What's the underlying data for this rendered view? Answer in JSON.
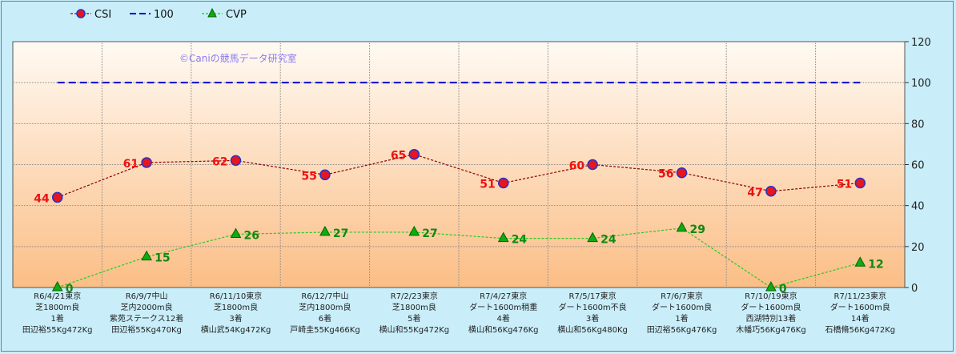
{
  "legend": [
    {
      "name": "CSI",
      "color": "#8b0000",
      "marker": "circle"
    },
    {
      "name": "100",
      "color": "#0000cc",
      "marker": "none"
    },
    {
      "name": "CVP",
      "color": "#22cc22",
      "marker": "triangle"
    }
  ],
  "watermark": "©Caniの競馬データ研究室",
  "chart_data": {
    "type": "line",
    "ylim": [
      0,
      120
    ],
    "yticks": [
      0,
      20,
      40,
      60,
      80,
      100,
      120
    ],
    "grid": true,
    "legend_position": "top-left",
    "categories": [
      [
        "R6/4/21東京",
        "芝1800m良",
        "1着",
        "田辺裕55Kg472Kg"
      ],
      [
        "R6/9/7中山",
        "芝内2000m良",
        "紫苑ステークス12着",
        "田辺裕55Kg470Kg"
      ],
      [
        "R6/11/10東京",
        "芝1800m良",
        "3着",
        "横山武54Kg472Kg"
      ],
      [
        "R6/12/7中山",
        "芝内1800m良",
        "6着",
        "戸崎圭55Kg466Kg"
      ],
      [
        "R7/2/23東京",
        "芝1800m良",
        "5着",
        "横山和55Kg472Kg"
      ],
      [
        "R7/4/27東京",
        "ダート1600m稍重",
        "4着",
        "横山和56Kg476Kg"
      ],
      [
        "R7/5/17東京",
        "ダート1600m不良",
        "3着",
        "横山和56Kg480Kg"
      ],
      [
        "R7/6/7東京",
        "ダート1600m良",
        "1着",
        "田辺裕56Kg476Kg"
      ],
      [
        "R7/10/19東京",
        "ダート1600m良",
        "西湖特別13着",
        "木幡巧56Kg476Kg"
      ],
      [
        "R7/11/23東京",
        "ダート1600m良",
        "14着",
        "石橋脩56Kg472Kg"
      ]
    ],
    "series": [
      {
        "name": "CSI",
        "values": [
          44,
          61,
          62,
          55,
          65,
          51,
          60,
          56,
          47,
          51
        ],
        "color": "#8b0000",
        "marker_fill": "#e8141e",
        "marker_edge": "#2233cc",
        "label_color": "#ee1111",
        "labels": true
      },
      {
        "name": "100",
        "values": [
          100,
          100,
          100,
          100,
          100,
          100,
          100,
          100,
          100,
          100
        ],
        "color": "#0000cc",
        "dashed": true,
        "labels": false
      },
      {
        "name": "CVP",
        "values": [
          0,
          15,
          26,
          27,
          27,
          24,
          24,
          29,
          0,
          12
        ],
        "color": "#22cc22",
        "marker_fill": "#11aa11",
        "label_color": "#118811",
        "labels": true
      }
    ]
  }
}
